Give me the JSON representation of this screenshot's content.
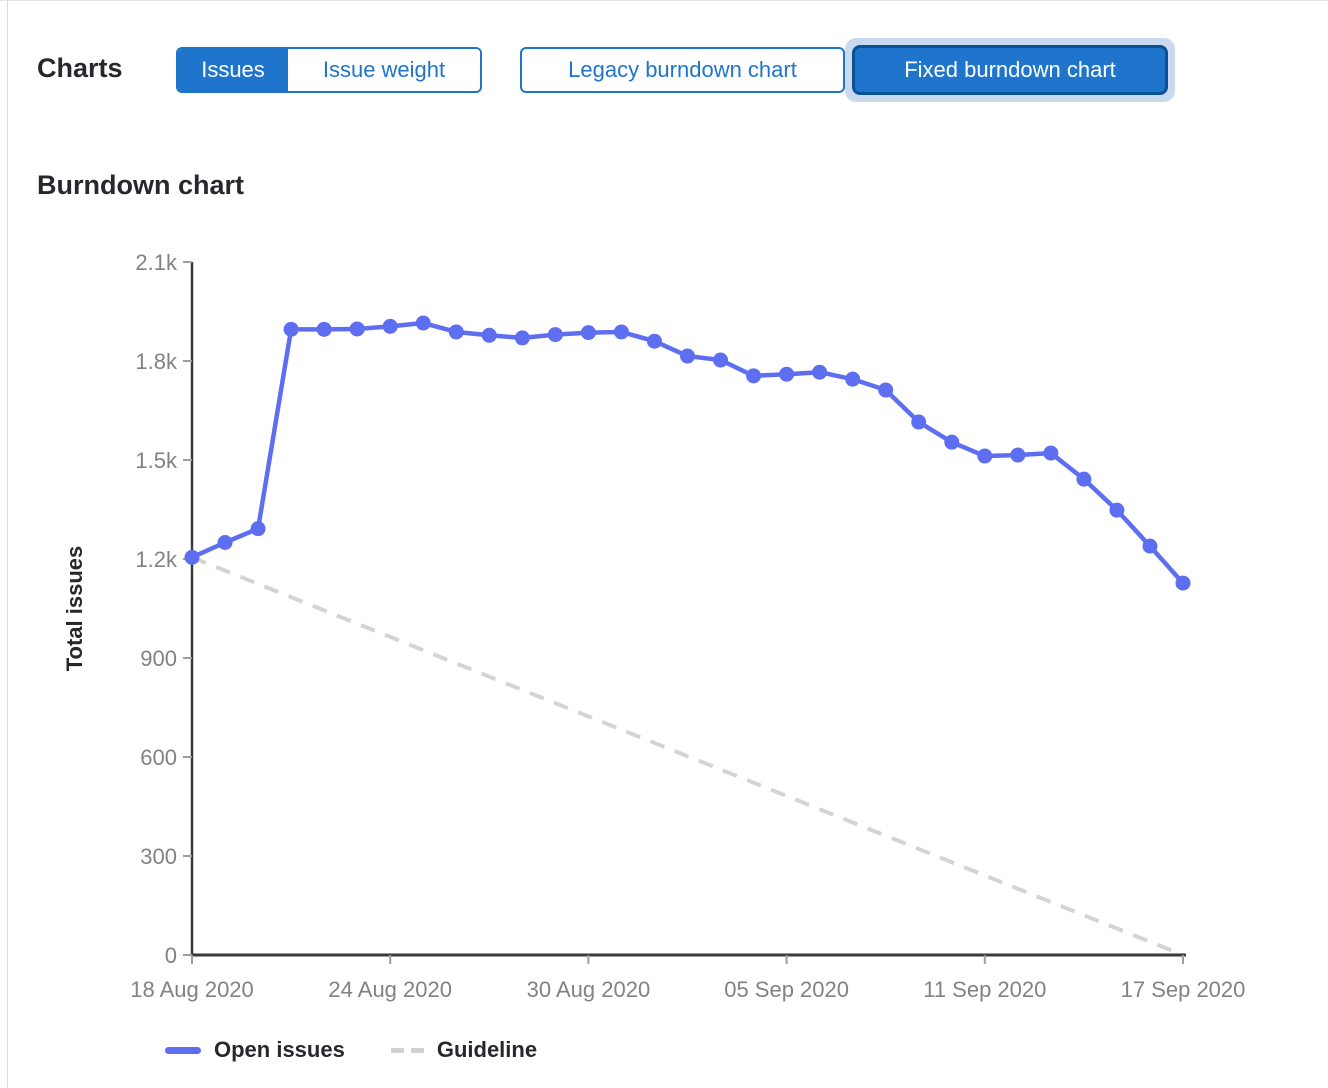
{
  "header": {
    "charts_label": "Charts",
    "issue_toggle": [
      {
        "label": "Issues",
        "selected": true
      },
      {
        "label": "Issue weight",
        "selected": false
      }
    ],
    "chart_type_buttons": [
      {
        "label": "Legacy burndown chart",
        "selected": false
      },
      {
        "label": "Fixed burndown chart",
        "selected": true,
        "focused": true
      }
    ]
  },
  "chart": {
    "title": "Burndown chart"
  },
  "legend": [
    {
      "label": "Open issues",
      "swatch": "solid-line"
    },
    {
      "label": "Guideline",
      "swatch": "dashed-line"
    }
  ],
  "colors": {
    "button_blue": "#1f75cb",
    "button_dark_border": "#0a5195",
    "focus_halo": "#c9d9ee",
    "line_blue": "#5d6ff0",
    "guideline_gray": "#d4d4d4",
    "axis_dark": "#3a3a3a",
    "tick_mark_gray": "#9e9e9e",
    "tick_text_gray": "#828282",
    "text_dark": "#28272d"
  },
  "chart_data": {
    "type": "line",
    "title": "Burndown chart",
    "ylabel": "Total issues",
    "xlabel": "",
    "ylim": [
      0,
      2100
    ],
    "grid": false,
    "legend_position": "bottom",
    "y_ticks": {
      "values": [
        0,
        300,
        600,
        900,
        1200,
        1500,
        1800,
        2100
      ],
      "labels": [
        "0",
        "300",
        "600",
        "900",
        "1.2k",
        "1.5k",
        "1.8k",
        "2.1k"
      ]
    },
    "x_ticks": {
      "day_indices": [
        0,
        6,
        12,
        18,
        24,
        30
      ],
      "labels": [
        "18 Aug 2020",
        "24 Aug 2020",
        "30 Aug 2020",
        "05 Sep 2020",
        "11 Sep 2020",
        "17 Sep 2020"
      ]
    },
    "x_range_days": 31,
    "series": [
      {
        "name": "Open issues",
        "style": "solid",
        "values": [
          1205,
          1250,
          1292,
          1896,
          1896,
          1897,
          1905,
          1915,
          1888,
          1878,
          1870,
          1880,
          1886,
          1888,
          1860,
          1815,
          1803,
          1755,
          1760,
          1766,
          1745,
          1712,
          1615,
          1554,
          1512,
          1515,
          1521,
          1442,
          1348,
          1239,
          1127
        ]
      },
      {
        "name": "Guideline",
        "style": "dashed",
        "endpoint_values": [
          1205,
          0
        ]
      }
    ]
  }
}
